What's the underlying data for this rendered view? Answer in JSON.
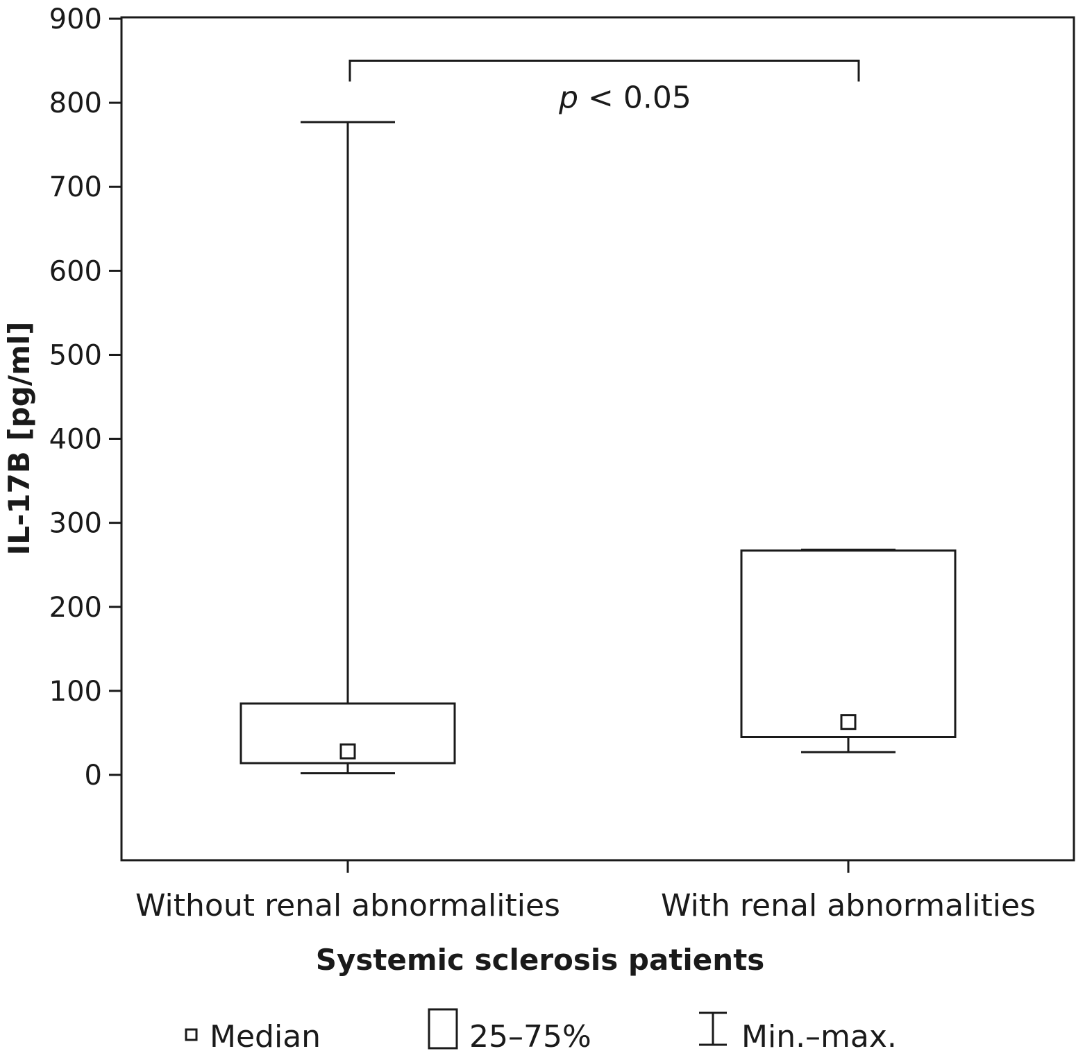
{
  "chart_data": {
    "type": "boxplot",
    "title": "",
    "xlabel": "Systemic sclerosis patients",
    "ylabel": "IL-17B [pg/ml]",
    "ylim": [
      -100,
      900
    ],
    "yticks": [
      0,
      100,
      200,
      300,
      400,
      500,
      600,
      700,
      800,
      900
    ],
    "categories": [
      "Without renal abnormalities",
      "With renal abnormalities"
    ],
    "boxes": [
      {
        "category": "Without renal abnormalities",
        "min": 2,
        "q1": 14,
        "median": 28,
        "q3": 85,
        "max": 777
      },
      {
        "category": "With renal abnormalities",
        "min": 27,
        "q1": 45,
        "median": 63,
        "q3": 267,
        "max": 268
      }
    ],
    "annotation": {
      "text_italic": "p",
      "text_rest": " < 0.05",
      "bracket_y": 850
    },
    "legend": {
      "position": "bottom",
      "items": [
        {
          "symbol": "median-square",
          "label": "Median"
        },
        {
          "symbol": "box",
          "label": "25–75%"
        },
        {
          "symbol": "whisker",
          "label": "Min.–max."
        }
      ]
    },
    "grid": false
  }
}
